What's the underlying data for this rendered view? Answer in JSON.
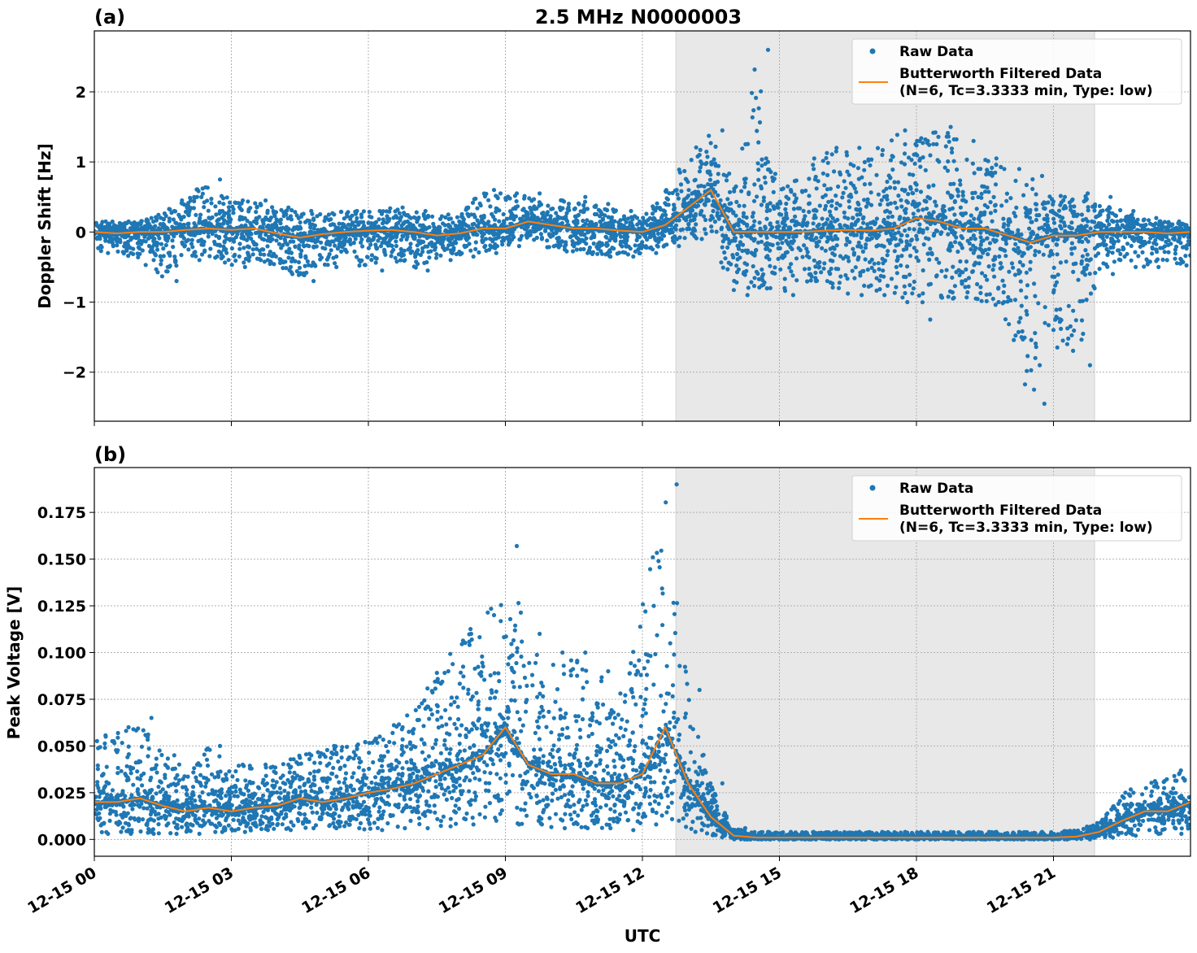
{
  "chart_data": [
    {
      "type": "scatter",
      "panel_label": "(a)",
      "title": "2.5 MHz N0000003",
      "xlabel": "",
      "ylabel": "Doppler Shift [Hz]",
      "xlim_hours_utc": [
        0,
        24
      ],
      "ylim": [
        -2.7,
        2.87
      ],
      "yticks": [
        -2,
        -1,
        0,
        1,
        2
      ],
      "ytick_labels": [
        "−2",
        "−1",
        "0",
        "1",
        "2"
      ],
      "grid": true,
      "legend_position": "top-right",
      "shaded_interval_utc": [
        "12:44",
        "21:54"
      ],
      "x_hours": [
        0,
        0.5,
        1,
        1.5,
        2,
        2.5,
        3,
        3.5,
        4,
        4.5,
        5,
        5.5,
        6,
        6.5,
        7,
        7.5,
        8,
        8.5,
        9,
        9.5,
        10,
        10.5,
        11,
        11.5,
        12,
        12.5,
        13,
        13.5,
        14,
        14.5,
        15,
        15.5,
        16,
        16.5,
        17,
        17.5,
        18,
        18.5,
        19,
        19.5,
        20,
        20.5,
        21,
        21.5,
        22,
        22.5,
        23,
        23.5,
        24
      ],
      "series": [
        {
          "name": "Raw Data",
          "kind": "points",
          "color": "#1f77b4",
          "min": [
            -0.3,
            -0.3,
            -0.4,
            -0.7,
            -0.4,
            -0.35,
            -0.5,
            -0.4,
            -0.5,
            -0.7,
            -0.5,
            -0.4,
            -0.55,
            -0.4,
            -0.55,
            -0.4,
            -0.35,
            -0.3,
            -0.2,
            -0.1,
            -0.25,
            -0.3,
            -0.35,
            -0.35,
            -0.3,
            -0.2,
            -0.1,
            -0.1,
            -0.9,
            -0.8,
            -0.9,
            -0.7,
            -0.8,
            -0.9,
            -0.9,
            -1.0,
            -1.25,
            -0.95,
            -0.95,
            -1.0,
            -1.5,
            -2.45,
            -1.6,
            -1.9,
            -0.6,
            -0.5,
            -0.5,
            -0.4,
            -0.55
          ],
          "max": [
            0.15,
            0.15,
            0.2,
            0.3,
            0.5,
            0.75,
            0.45,
            0.45,
            0.35,
            0.3,
            0.25,
            0.3,
            0.3,
            0.35,
            0.3,
            0.25,
            0.25,
            0.6,
            0.55,
            0.55,
            0.45,
            0.5,
            0.4,
            0.3,
            0.2,
            0.6,
            1.1,
            1.45,
            0.7,
            2.6,
            0.6,
            0.9,
            1.2,
            1.2,
            1.1,
            1.45,
            1.3,
            1.5,
            1.3,
            1.05,
            0.9,
            0.8,
            0.5,
            0.55,
            0.5,
            0.3,
            0.2,
            0.15,
            0.1
          ]
        },
        {
          "name": "Butterworth Filtered Data",
          "name_line2": "(N=6, Tc=3.3333 min, Type: low)",
          "kind": "line",
          "color": "#ff7f0e",
          "values": [
            0,
            -0.02,
            0,
            0,
            0.03,
            0.05,
            0.03,
            0.05,
            -0.02,
            -0.08,
            -0.03,
            0,
            0.02,
            0.03,
            0,
            -0.05,
            -0.02,
            0.05,
            0.05,
            0.15,
            0.1,
            0.05,
            0.05,
            0.02,
            0,
            0.1,
            0.35,
            0.6,
            0,
            0,
            0,
            0,
            0.02,
            0.03,
            0.02,
            0.05,
            0.2,
            0.15,
            0.05,
            0.05,
            -0.05,
            -0.15,
            -0.05,
            -0.05,
            0,
            0,
            0,
            -0.02,
            0
          ]
        }
      ]
    },
    {
      "type": "scatter",
      "panel_label": "(b)",
      "xlabel": "UTC",
      "ylabel": "Peak Voltage [V]",
      "xlim_hours_utc": [
        0,
        24
      ],
      "xtick_labels": [
        "12-15 00",
        "12-15 03",
        "12-15 06",
        "12-15 09",
        "12-15 12",
        "12-15 15",
        "12-15 18",
        "12-15 21"
      ],
      "ylim": [
        -0.009,
        0.199
      ],
      "yticks": [
        0,
        0.025,
        0.05,
        0.075,
        0.1,
        0.125,
        0.15,
        0.175
      ],
      "ytick_labels": [
        "0.000",
        "0.025",
        "0.050",
        "0.075",
        "0.100",
        "0.125",
        "0.150",
        "0.175"
      ],
      "grid": true,
      "legend_position": "top-right",
      "shaded_interval_utc": [
        "12:44",
        "21:54"
      ],
      "x_hours": [
        0,
        0.5,
        1,
        1.5,
        2,
        2.5,
        3,
        3.5,
        4,
        4.5,
        5,
        5.5,
        6,
        6.5,
        7,
        7.5,
        8,
        8.5,
        9,
        9.5,
        10,
        10.5,
        11,
        11.5,
        12,
        12.5,
        13,
        13.5,
        14,
        14.5,
        15,
        15.5,
        16,
        16.5,
        17,
        17.5,
        18,
        18.5,
        19,
        19.5,
        20,
        20.5,
        21,
        21.5,
        22,
        22.5,
        23,
        23.5,
        24
      ],
      "series": [
        {
          "name": "Raw Data",
          "kind": "points",
          "color": "#1f77b4",
          "min": [
            0.003,
            0.003,
            0.003,
            0.003,
            0.003,
            0.004,
            0.004,
            0.005,
            0.005,
            0.006,
            0.006,
            0.006,
            0.005,
            0.006,
            0.006,
            0.007,
            0.008,
            0.01,
            0.008,
            0.008,
            0.006,
            0.006,
            0.006,
            0.005,
            0.008,
            0.01,
            0.005,
            0.002,
            0,
            0,
            0,
            0,
            0,
            0,
            0,
            0,
            0,
            0,
            0,
            0,
            0,
            0,
            0,
            0,
            0.001,
            0.002,
            0.003,
            0.003,
            0.005
          ],
          "max": [
            0.055,
            0.06,
            0.065,
            0.045,
            0.04,
            0.05,
            0.04,
            0.04,
            0.04,
            0.045,
            0.05,
            0.05,
            0.055,
            0.06,
            0.07,
            0.09,
            0.11,
            0.12,
            0.157,
            0.11,
            0.1,
            0.1,
            0.09,
            0.08,
            0.125,
            0.19,
            0.08,
            0.03,
            0.006,
            0.004,
            0.004,
            0.004,
            0.004,
            0.004,
            0.004,
            0.004,
            0.004,
            0.004,
            0.004,
            0.004,
            0.004,
            0.004,
            0.004,
            0.005,
            0.01,
            0.025,
            0.03,
            0.035,
            0.04
          ]
        },
        {
          "name": "Butterworth Filtered Data",
          "name_line2": "(N=6, Tc=3.3333 min, Type: low)",
          "kind": "line",
          "color": "#ff7f0e",
          "values": [
            0.02,
            0.02,
            0.022,
            0.018,
            0.015,
            0.017,
            0.015,
            0.017,
            0.018,
            0.022,
            0.02,
            0.022,
            0.025,
            0.027,
            0.03,
            0.035,
            0.04,
            0.045,
            0.06,
            0.04,
            0.035,
            0.035,
            0.03,
            0.03,
            0.035,
            0.06,
            0.03,
            0.012,
            0.002,
            0.001,
            0.001,
            0.001,
            0.001,
            0.001,
            0.001,
            0.001,
            0.001,
            0.001,
            0.001,
            0.001,
            0.001,
            0.001,
            0.001,
            0.0015,
            0.004,
            0.01,
            0.015,
            0.015,
            0.02
          ]
        }
      ]
    }
  ],
  "colors": {
    "raw": "#1f77b4",
    "filtered": "#ff7f0e",
    "shade": "#e8e8e8"
  }
}
